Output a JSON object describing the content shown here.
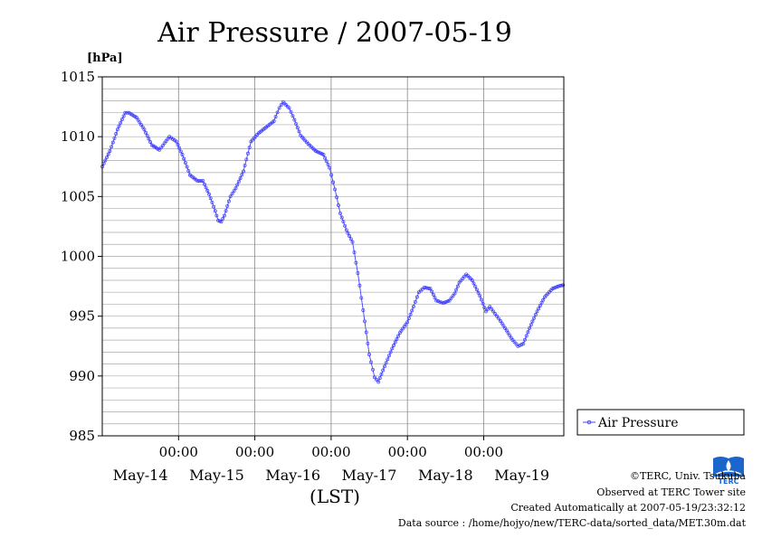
{
  "chart_data": {
    "type": "line",
    "title": "Air Pressure / 2007-05-19",
    "ylabel": "[hPa]",
    "xlabel": "(LST)",
    "ylim": [
      985,
      1015
    ],
    "yticks": [
      985,
      990,
      995,
      1000,
      1005,
      1010,
      1015
    ],
    "xlim_days": [
      0,
      6.05
    ],
    "x_time_ticks": [
      {
        "day": 1,
        "label": "00:00"
      },
      {
        "day": 2,
        "label": "00:00"
      },
      {
        "day": 3,
        "label": "00:00"
      },
      {
        "day": 4,
        "label": "00:00"
      },
      {
        "day": 5,
        "label": "00:00"
      }
    ],
    "x_day_labels": [
      {
        "day": 0.5,
        "label": "May-14"
      },
      {
        "day": 1.5,
        "label": "May-15"
      },
      {
        "day": 2.5,
        "label": "May-16"
      },
      {
        "day": 3.5,
        "label": "May-17"
      },
      {
        "day": 4.5,
        "label": "May-18"
      },
      {
        "day": 5.5,
        "label": "May-19"
      }
    ],
    "grid": true,
    "legend": "right",
    "series": [
      {
        "name": "Air Pressure",
        "color": "#4040ff",
        "points": [
          [
            0.0,
            1007.5
          ],
          [
            0.1,
            1008.8
          ],
          [
            0.2,
            1010.6
          ],
          [
            0.3,
            1012.0
          ],
          [
            0.35,
            1012.0
          ],
          [
            0.45,
            1011.6
          ],
          [
            0.55,
            1010.6
          ],
          [
            0.65,
            1009.3
          ],
          [
            0.75,
            1008.9
          ],
          [
            0.88,
            1010.0
          ],
          [
            0.97,
            1009.6
          ],
          [
            1.05,
            1008.5
          ],
          [
            1.15,
            1006.8
          ],
          [
            1.25,
            1006.3
          ],
          [
            1.32,
            1006.3
          ],
          [
            1.4,
            1005.2
          ],
          [
            1.48,
            1003.8
          ],
          [
            1.52,
            1003.0
          ],
          [
            1.56,
            1002.9
          ],
          [
            1.6,
            1003.4
          ],
          [
            1.68,
            1005.0
          ],
          [
            1.75,
            1005.7
          ],
          [
            1.85,
            1007.1
          ],
          [
            1.95,
            1009.6
          ],
          [
            2.05,
            1010.3
          ],
          [
            2.15,
            1010.8
          ],
          [
            2.25,
            1011.3
          ],
          [
            2.32,
            1012.4
          ],
          [
            2.37,
            1012.9
          ],
          [
            2.45,
            1012.4
          ],
          [
            2.52,
            1011.4
          ],
          [
            2.6,
            1010.1
          ],
          [
            2.7,
            1009.4
          ],
          [
            2.8,
            1008.8
          ],
          [
            2.9,
            1008.5
          ],
          [
            2.98,
            1007.4
          ],
          [
            3.05,
            1005.6
          ],
          [
            3.12,
            1003.6
          ],
          [
            3.2,
            1002.2
          ],
          [
            3.28,
            1001.2
          ],
          [
            3.35,
            998.6
          ],
          [
            3.42,
            995.5
          ],
          [
            3.5,
            991.8
          ],
          [
            3.57,
            989.9
          ],
          [
            3.62,
            989.5
          ],
          [
            3.7,
            990.8
          ],
          [
            3.8,
            992.3
          ],
          [
            3.9,
            993.6
          ],
          [
            4.0,
            994.5
          ],
          [
            4.08,
            995.8
          ],
          [
            4.15,
            997.0
          ],
          [
            4.22,
            997.4
          ],
          [
            4.3,
            997.3
          ],
          [
            4.38,
            996.3
          ],
          [
            4.47,
            996.1
          ],
          [
            4.55,
            996.3
          ],
          [
            4.62,
            996.9
          ],
          [
            4.68,
            997.8
          ],
          [
            4.77,
            998.5
          ],
          [
            4.85,
            998.0
          ],
          [
            4.95,
            996.7
          ],
          [
            5.03,
            995.4
          ],
          [
            5.08,
            995.8
          ],
          [
            5.15,
            995.2
          ],
          [
            5.22,
            994.6
          ],
          [
            5.3,
            993.8
          ],
          [
            5.38,
            993.0
          ],
          [
            5.45,
            992.5
          ],
          [
            5.52,
            992.7
          ],
          [
            5.6,
            994.0
          ],
          [
            5.7,
            995.4
          ],
          [
            5.8,
            996.6
          ],
          [
            5.9,
            997.3
          ],
          [
            5.98,
            997.5
          ],
          [
            6.04,
            997.6
          ]
        ]
      }
    ]
  },
  "legend": {
    "label": "Air Pressure"
  },
  "footer": {
    "line1": "©TERC, Univ. Tsukuba",
    "line2": "Observed at TERC Tower site",
    "line3": "Created Automatically at 2007-05-19/23:32:12",
    "line4": "Data source : /home/hojyo/new/TERC-data/sorted_data/MET.30m.dat"
  },
  "logo": {
    "text": "TERC",
    "color": "#1a66cc"
  }
}
